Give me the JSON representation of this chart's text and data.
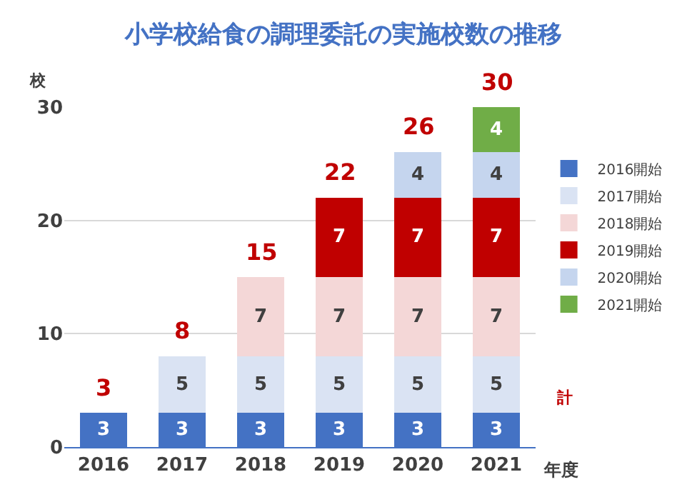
{
  "chart_data": {
    "type": "bar",
    "title": "小学校給食の調理委託の実施校数の推移",
    "xlabel": "年度",
    "ylabel": "校",
    "categories": [
      "2016",
      "2017",
      "2018",
      "2019",
      "2020",
      "2021"
    ],
    "stacked": true,
    "data_labels": true,
    "grid": "y",
    "legend": "right",
    "ylim": [
      0,
      30
    ],
    "yticks": [
      0,
      10,
      20,
      30
    ],
    "totals": [
      "3",
      "8",
      "15",
      "22",
      "26",
      "30"
    ],
    "annotations": [
      "計"
    ],
    "series": [
      {
        "name": "2016開始",
        "color": "#4472c4",
        "values": [
          3,
          3,
          3,
          3,
          3,
          3
        ]
      },
      {
        "name": "2017開始",
        "color": "#dae3f3",
        "values": [
          null,
          5,
          5,
          5,
          5,
          5
        ]
      },
      {
        "name": "2018開始",
        "color": "#f4d7d7",
        "values": [
          null,
          null,
          7,
          7,
          7,
          7
        ]
      },
      {
        "name": "2019開始",
        "color": "#c00000",
        "values": [
          null,
          null,
          null,
          7,
          7,
          7
        ]
      },
      {
        "name": "2020開始",
        "color": "#c5d5ee",
        "values": [
          null,
          null,
          null,
          null,
          4,
          4
        ]
      },
      {
        "name": "2021開始",
        "color": "#70ad47",
        "values": [
          null,
          null,
          null,
          null,
          null,
          4
        ]
      }
    ]
  }
}
